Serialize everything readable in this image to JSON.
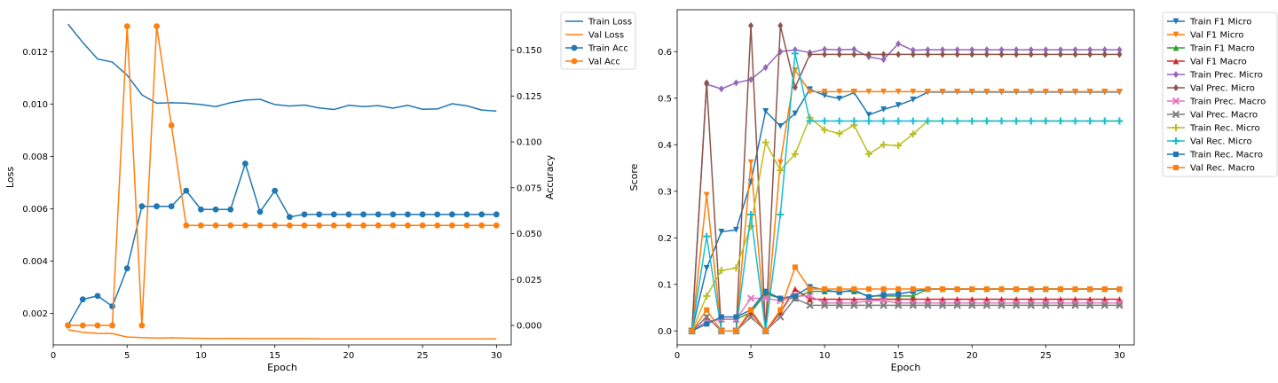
{
  "chart_data": [
    {
      "type": "line",
      "xlabel": "Epoch",
      "ylabel": "Loss",
      "y2label": "Accuracy",
      "xlim": [
        0,
        31
      ],
      "ylim": [
        0.0008,
        0.0136
      ],
      "y2lim": [
        -0.0106,
        0.172
      ],
      "xticks": [
        "0",
        "5",
        "10",
        "15",
        "20",
        "25",
        "30"
      ],
      "yticks": [
        "0.002",
        "0.004",
        "0.006",
        "0.008",
        "0.010",
        "0.012"
      ],
      "y2ticks": [
        "0.000",
        "0.025",
        "0.050",
        "0.075",
        "0.100",
        "0.125",
        "0.150"
      ],
      "legend_position": "outside-top-right",
      "x": [
        1,
        2,
        3,
        4,
        5,
        6,
        7,
        8,
        9,
        10,
        11,
        12,
        13,
        14,
        15,
        16,
        17,
        18,
        19,
        20,
        21,
        22,
        23,
        24,
        25,
        26,
        27,
        28,
        29,
        30
      ],
      "series": [
        {
          "name": "Train Loss",
          "axis": "left",
          "color": "#1f77b4",
          "marker": "none",
          "values": [
            0.01305,
            0.01235,
            0.01172,
            0.0116,
            0.0111,
            0.01035,
            0.01003,
            0.01005,
            0.01003,
            0.00998,
            0.0099,
            0.01005,
            0.01015,
            0.01018,
            0.00998,
            0.00992,
            0.00996,
            0.00985,
            0.00979,
            0.00995,
            0.0099,
            0.00994,
            0.00984,
            0.00995,
            0.0098,
            0.00981,
            0.01001,
            0.00993,
            0.00977,
            0.00973
          ]
        },
        {
          "name": "Val Loss",
          "axis": "left",
          "color": "#ff7f0e",
          "marker": "none",
          "values": [
            0.00138,
            0.00128,
            0.00124,
            0.00123,
            0.0011,
            0.00108,
            0.00106,
            0.00107,
            0.00106,
            0.00105,
            0.00104,
            0.00105,
            0.00104,
            0.00104,
            0.00104,
            0.00104,
            0.00104,
            0.00103,
            0.00103,
            0.00103,
            0.00103,
            0.00103,
            0.00103,
            0.00103,
            0.00103,
            0.00103,
            0.00103,
            0.00103,
            0.00103,
            0.00103
          ]
        },
        {
          "name": "Train Acc",
          "axis": "right",
          "color": "#1f77b4",
          "marker": "circle",
          "values": [
            0.0,
            0.0142,
            0.0161,
            0.0104,
            0.0311,
            0.0649,
            0.0649,
            0.0649,
            0.0734,
            0.0632,
            0.0632,
            0.0632,
            0.0882,
            0.0619,
            0.0734,
            0.0591,
            0.0605,
            0.0605,
            0.0605,
            0.0605,
            0.0605,
            0.0605,
            0.0605,
            0.0605,
            0.0605,
            0.0605,
            0.0605,
            0.0605,
            0.0605,
            0.0605
          ]
        },
        {
          "name": "Val Acc",
          "axis": "right",
          "color": "#ff7f0e",
          "marker": "circle",
          "values": [
            0.0,
            0.0,
            0.0,
            0.0,
            0.163,
            0.0,
            0.163,
            0.109,
            0.0545,
            0.0545,
            0.0545,
            0.0545,
            0.0545,
            0.0545,
            0.0545,
            0.0545,
            0.0545,
            0.0545,
            0.0545,
            0.0545,
            0.0545,
            0.0545,
            0.0545,
            0.0545,
            0.0545,
            0.0545,
            0.0545,
            0.0545,
            0.0545,
            0.0545
          ]
        }
      ]
    },
    {
      "type": "line",
      "xlabel": "Epoch",
      "ylabel": "Score",
      "xlim": [
        0,
        31
      ],
      "ylim": [
        -0.03,
        0.69
      ],
      "xticks": [
        "0",
        "5",
        "10",
        "15",
        "20",
        "25",
        "30"
      ],
      "yticks": [
        "0.0",
        "0.1",
        "0.2",
        "0.3",
        "0.4",
        "0.5",
        "0.6"
      ],
      "legend_position": "outside-top-right",
      "x": [
        1,
        2,
        3,
        4,
        5,
        6,
        7,
        8,
        9,
        10,
        11,
        12,
        13,
        14,
        15,
        16,
        17,
        18,
        19,
        20,
        21,
        22,
        23,
        24,
        25,
        26,
        27,
        28,
        29,
        30
      ],
      "series": [
        {
          "name": "Train F1 Micro",
          "color": "#1f77b4",
          "marker": "tri_down",
          "values": [
            0.0,
            0.135,
            0.213,
            0.217,
            0.32,
            0.472,
            0.44,
            0.467,
            0.519,
            0.506,
            0.499,
            0.512,
            0.464,
            0.476,
            0.485,
            0.497,
            0.513,
            0.513,
            0.513,
            0.513,
            0.513,
            0.513,
            0.513,
            0.513,
            0.513,
            0.513,
            0.513,
            0.513,
            0.513,
            0.513
          ]
        },
        {
          "name": "Val F1 Micro",
          "color": "#ff7f0e",
          "marker": "tri_down",
          "values": [
            0.0,
            0.292,
            0.0,
            0.0,
            0.362,
            0.0,
            0.362,
            0.56,
            0.514,
            0.514,
            0.514,
            0.514,
            0.514,
            0.514,
            0.514,
            0.514,
            0.514,
            0.514,
            0.514,
            0.514,
            0.514,
            0.514,
            0.514,
            0.514,
            0.514,
            0.514,
            0.514,
            0.514,
            0.514,
            0.514
          ]
        },
        {
          "name": "Train F1 Macro",
          "color": "#2ca02c",
          "marker": "tri_up",
          "values": [
            0.0,
            0.02,
            0.025,
            0.025,
            0.04,
            0.08,
            0.07,
            0.07,
            0.085,
            0.085,
            0.085,
            0.085,
            0.075,
            0.075,
            0.075,
            0.075,
            0.09,
            0.09,
            0.09,
            0.09,
            0.09,
            0.09,
            0.09,
            0.09,
            0.09,
            0.09,
            0.09,
            0.09,
            0.09,
            0.09
          ]
        },
        {
          "name": "Val F1 Macro",
          "color": "#d62728",
          "marker": "tri_up",
          "values": [
            0.0,
            0.03,
            0.0,
            0.0,
            0.04,
            0.0,
            0.04,
            0.09,
            0.068,
            0.068,
            0.068,
            0.068,
            0.068,
            0.068,
            0.068,
            0.068,
            0.068,
            0.068,
            0.068,
            0.068,
            0.068,
            0.068,
            0.068,
            0.068,
            0.068,
            0.068,
            0.068,
            0.068,
            0.068,
            0.068
          ]
        },
        {
          "name": "Train Prec. Micro",
          "color": "#9467bd",
          "marker": "diamond",
          "values": [
            0.0,
            0.53,
            0.52,
            0.533,
            0.54,
            0.566,
            0.6,
            0.604,
            0.598,
            0.605,
            0.604,
            0.605,
            0.589,
            0.583,
            0.617,
            0.603,
            0.604,
            0.604,
            0.604,
            0.604,
            0.604,
            0.604,
            0.604,
            0.604,
            0.604,
            0.604,
            0.604,
            0.604,
            0.604,
            0.604
          ]
        },
        {
          "name": "Val Prec. Micro",
          "color": "#8c564b",
          "marker": "diamond",
          "values": [
            0.0,
            0.533,
            0.0,
            0.0,
            0.656,
            0.0,
            0.656,
            0.523,
            0.594,
            0.594,
            0.594,
            0.594,
            0.594,
            0.594,
            0.594,
            0.594,
            0.594,
            0.594,
            0.594,
            0.594,
            0.594,
            0.594,
            0.594,
            0.594,
            0.594,
            0.594,
            0.594,
            0.594,
            0.594,
            0.594
          ]
        },
        {
          "name": "Train Prec. Macro",
          "color": "#e377c2",
          "marker": "x",
          "values": [
            0.0,
            0.02,
            0.025,
            0.025,
            0.07,
            0.07,
            0.065,
            0.075,
            0.075,
            0.06,
            0.06,
            0.06,
            0.065,
            0.065,
            0.06,
            0.06,
            0.06,
            0.06,
            0.06,
            0.06,
            0.06,
            0.06,
            0.06,
            0.06,
            0.06,
            0.06,
            0.06,
            0.06,
            0.06,
            0.06
          ]
        },
        {
          "name": "Val Prec. Macro",
          "color": "#7f7f7f",
          "marker": "x",
          "values": [
            0.0,
            0.03,
            0.0,
            0.0,
            0.03,
            0.0,
            0.03,
            0.07,
            0.055,
            0.055,
            0.055,
            0.055,
            0.055,
            0.055,
            0.055,
            0.055,
            0.055,
            0.055,
            0.055,
            0.055,
            0.055,
            0.055,
            0.055,
            0.055,
            0.055,
            0.055,
            0.055,
            0.055,
            0.055,
            0.055
          ]
        },
        {
          "name": "Train Rec. Micro",
          "color": "#bcbd22",
          "marker": "plus",
          "values": [
            0.0,
            0.075,
            0.13,
            0.135,
            0.225,
            0.405,
            0.345,
            0.38,
            0.458,
            0.432,
            0.424,
            0.442,
            0.38,
            0.4,
            0.398,
            0.423,
            0.451,
            0.451,
            0.451,
            0.451,
            0.451,
            0.451,
            0.451,
            0.451,
            0.451,
            0.451,
            0.451,
            0.451,
            0.451,
            0.451
          ]
        },
        {
          "name": "Val Rec. Micro",
          "color": "#17becf",
          "marker": "plus",
          "values": [
            0.0,
            0.203,
            0.0,
            0.0,
            0.25,
            0.0,
            0.25,
            0.596,
            0.451,
            0.451,
            0.451,
            0.451,
            0.451,
            0.451,
            0.451,
            0.451,
            0.451,
            0.451,
            0.451,
            0.451,
            0.451,
            0.451,
            0.451,
            0.451,
            0.451,
            0.451,
            0.451,
            0.451,
            0.451,
            0.451
          ]
        },
        {
          "name": "Train Rec. Macro",
          "color": "#1f77b4",
          "marker": "square",
          "values": [
            0.0,
            0.015,
            0.03,
            0.03,
            0.045,
            0.085,
            0.07,
            0.075,
            0.095,
            0.088,
            0.083,
            0.088,
            0.073,
            0.078,
            0.079,
            0.085,
            0.09,
            0.09,
            0.09,
            0.09,
            0.09,
            0.09,
            0.09,
            0.09,
            0.09,
            0.09,
            0.09,
            0.09,
            0.09,
            0.09
          ]
        },
        {
          "name": "Val Rec. Macro",
          "color": "#ff7f0e",
          "marker": "square",
          "values": [
            0.0,
            0.045,
            0.0,
            0.0,
            0.045,
            0.0,
            0.045,
            0.137,
            0.09,
            0.09,
            0.09,
            0.09,
            0.09,
            0.09,
            0.09,
            0.09,
            0.09,
            0.09,
            0.09,
            0.09,
            0.09,
            0.09,
            0.09,
            0.09,
            0.09,
            0.09,
            0.09,
            0.09,
            0.09,
            0.09
          ]
        }
      ]
    }
  ]
}
